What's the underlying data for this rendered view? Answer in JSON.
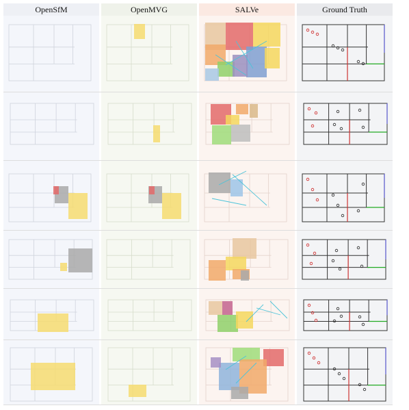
{
  "columns": [
    "OpenSfM",
    "OpenMVG",
    "SALVe",
    "Ground Truth"
  ]
}
